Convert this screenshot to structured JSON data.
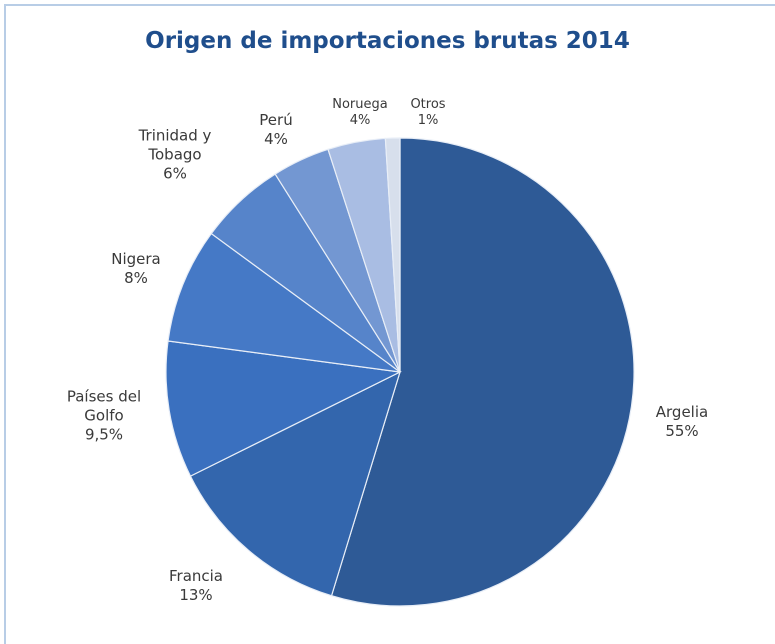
{
  "chart_data": {
    "type": "pie",
    "title": "Origen de importaciones brutas 2014",
    "categories": [
      "Argelia",
      "Francia",
      "Países del Golfo",
      "Nigera",
      "Trinidad y Tobago",
      "Perú",
      "Noruega",
      "Otros"
    ],
    "values": [
      55,
      13,
      9.5,
      8,
      6,
      4,
      4,
      1
    ],
    "value_labels": [
      "55%",
      "13%",
      "9,5%",
      "8%",
      "6%",
      "4%",
      "4%",
      "1%"
    ],
    "colors": [
      "#2e5a96",
      "#3366ad",
      "#3a70bf",
      "#4579c6",
      "#5684ca",
      "#7397d2",
      "#a9bde3",
      "#d7dfec"
    ]
  }
}
